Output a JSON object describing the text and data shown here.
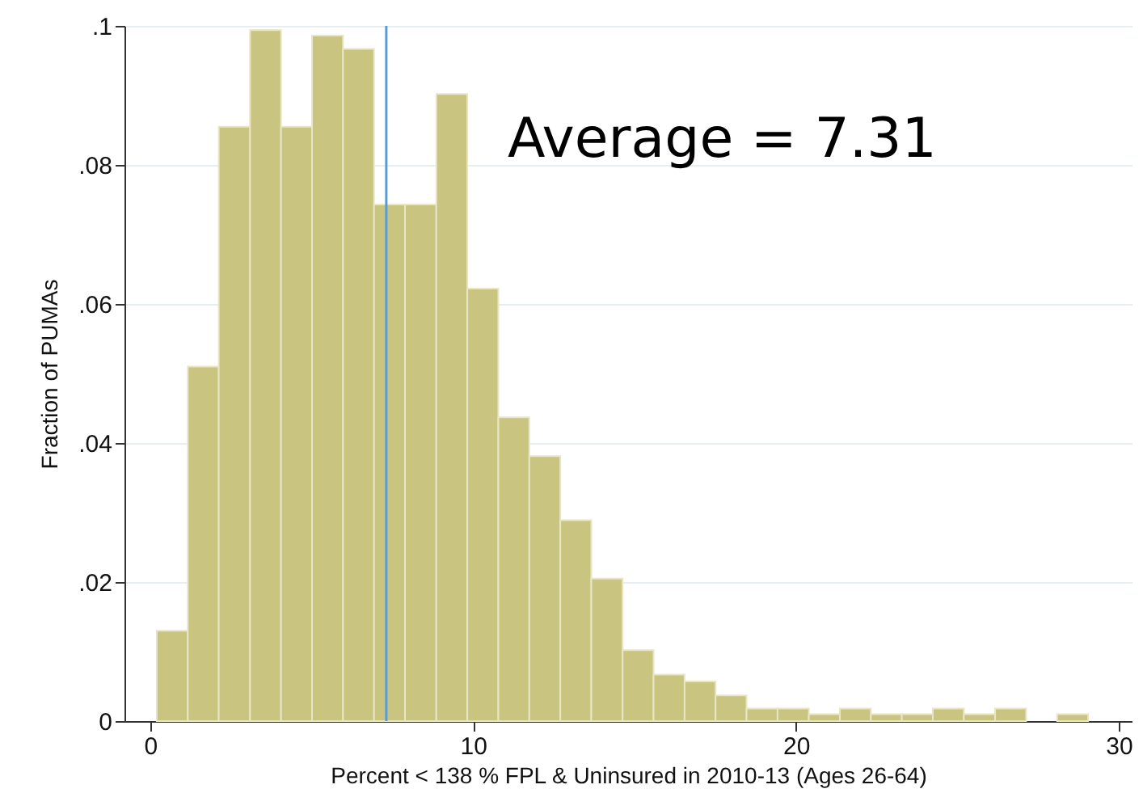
{
  "chart_data": {
    "type": "histogram",
    "xlabel": "Percent < 138 % FPL & Uninsured in 2010-13 (Ages 26-64)",
    "ylabel": "Fraction of PUMAs",
    "bins": [
      0.2,
      1.16,
      2.12,
      3.09,
      4.05,
      5.01,
      5.97,
      6.93,
      7.89,
      8.86,
      9.82,
      10.78,
      11.74,
      12.7,
      13.66,
      14.63,
      15.59,
      16.55,
      17.51,
      18.47,
      19.43,
      20.4,
      21.36,
      22.32,
      23.28,
      24.24,
      25.2,
      26.17,
      27.13,
      28.09,
      29.05
    ],
    "values": [
      0.013,
      0.051,
      0.0855,
      0.0994,
      0.0855,
      0.0986,
      0.0967,
      0.0743,
      0.0743,
      0.0902,
      0.0622,
      0.0437,
      0.0381,
      0.0289,
      0.0205,
      0.0102,
      0.0067,
      0.0057,
      0.0037,
      0.0018,
      0.0018,
      0.001,
      0.0018,
      0.001,
      0.001,
      0.0018,
      0.001,
      0.0018,
      0,
      0.001
    ],
    "color": "#c9c47f",
    "xlim": [
      -0.8,
      30.4
    ],
    "xticks": [
      0,
      10,
      20,
      30
    ],
    "ylim": [
      0,
      0.1
    ],
    "yticks": [
      0,
      {
        "value": 0.02,
        "label": ".02"
      },
      {
        "value": 0.04,
        "label": ".04"
      },
      {
        "value": 0.06,
        "label": ".06"
      },
      {
        "value": 0.08,
        "label": ".08"
      },
      {
        "value": 0.1,
        "label": ".1"
      }
    ],
    "grid": "y",
    "ref_lines": [
      {
        "axis": "x",
        "value": 7.31,
        "color": "#5b9bd5"
      }
    ],
    "annotations": [
      "Average = 7.31"
    ]
  }
}
